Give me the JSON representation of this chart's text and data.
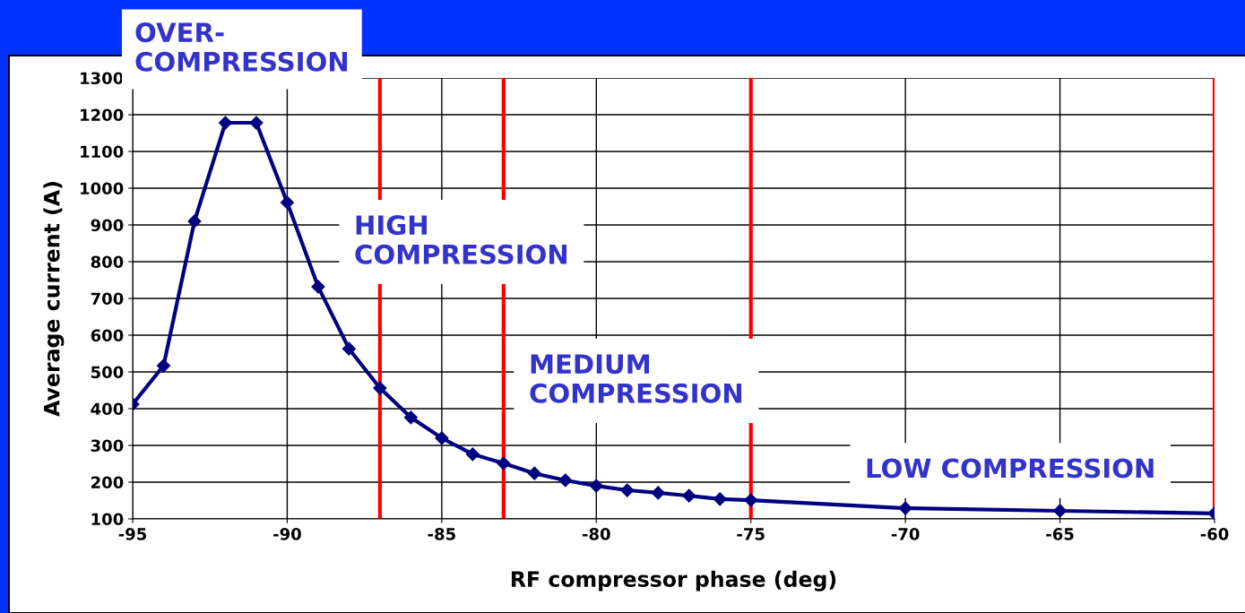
{
  "chart_data": {
    "type": "line",
    "xlabel": "RF compressor phase (deg)",
    "ylabel": "Average current (A)",
    "x": [
      -95,
      -94,
      -93,
      -92,
      -91,
      -90,
      -89,
      -88,
      -87,
      -86,
      -85,
      -84,
      -83,
      -82,
      -81,
      -80,
      -79,
      -78,
      -77,
      -76,
      -75,
      -70,
      -65,
      -60
    ],
    "series": [
      {
        "color": "#000080",
        "values": [
          412,
          517,
          910,
          1178,
          1178,
          961,
          732,
          563,
          456,
          376,
          320,
          276,
          251,
          224,
          205,
          190,
          178,
          171,
          163,
          154,
          151,
          129,
          122,
          115
        ]
      }
    ],
    "marker": "diamond",
    "line_style": "solid",
    "xlim": [
      -95,
      -60
    ],
    "xticks": [
      -95,
      -90,
      -85,
      -80,
      -75,
      -70,
      -65,
      -60
    ],
    "ylim": [
      100,
      1300
    ],
    "yticks": [
      100,
      200,
      300,
      400,
      500,
      600,
      700,
      800,
      900,
      1000,
      1100,
      1200,
      1300
    ],
    "grid": true,
    "ref_lines": [
      {
        "axis": "x",
        "value": -87,
        "color": "#ff0000"
      },
      {
        "axis": "x",
        "value": -83,
        "color": "#ff0000"
      },
      {
        "axis": "x",
        "value": -75,
        "color": "#ff0000"
      },
      {
        "axis": "x",
        "value": -60,
        "color": "#ff0000"
      }
    ],
    "annotations": [
      "OVER-\nCOMPRESSION",
      "HIGH\nCOMPRESSION",
      "MEDIUM\nCOMPRESSION",
      "LOW COMPRESSION"
    ]
  }
}
